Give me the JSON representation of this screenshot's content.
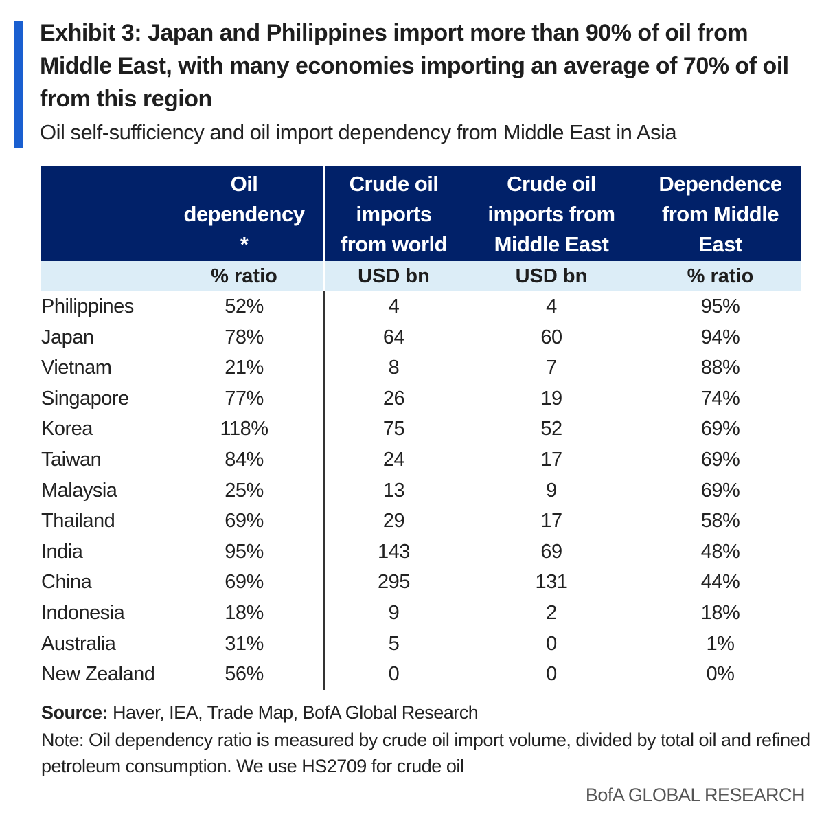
{
  "header": {
    "title": "Exhibit 3: Japan and Philippines import more than 90% of oil from Middle East, with many economies importing an average of 70% of oil from this region",
    "subtitle": "Oil self-sufficiency and oil import dependency from Middle East in Asia",
    "accent_color": "#1a5fd0"
  },
  "chart_data": {
    "type": "table",
    "title": "Exhibit 3: Japan and Philippines import more than 90% of oil from Middle East, with many economies importing an average of 70% of oil from this region",
    "subtitle": "Oil self-sufficiency and oil import dependency from Middle East in Asia",
    "header_color": "#012169",
    "unit_row_color": "#dcedf7",
    "columns": [
      {
        "label": "",
        "unit": ""
      },
      {
        "label": "Oil dependency *",
        "label_lines": [
          "Oil",
          "dependency",
          "*"
        ],
        "unit": "% ratio"
      },
      {
        "label": "Crude oil imports from world",
        "label_lines": [
          "Crude oil",
          "imports",
          "from world"
        ],
        "unit": "USD bn"
      },
      {
        "label": "Crude oil imports from Middle East",
        "label_lines": [
          "Crude oil",
          "imports from",
          "Middle East"
        ],
        "unit": "USD bn"
      },
      {
        "label": "Dependence from Middle East",
        "label_lines": [
          "Dependence",
          "from Middle",
          "East"
        ],
        "unit": "% ratio"
      }
    ],
    "rows": [
      {
        "country": "Philippines",
        "oil_dependency": "52%",
        "imports_world": "4",
        "imports_me": "4",
        "dependence_me": "95%"
      },
      {
        "country": "Japan",
        "oil_dependency": "78%",
        "imports_world": "64",
        "imports_me": "60",
        "dependence_me": "94%"
      },
      {
        "country": "Vietnam",
        "oil_dependency": "21%",
        "imports_world": "8",
        "imports_me": "7",
        "dependence_me": "88%"
      },
      {
        "country": "Singapore",
        "oil_dependency": "77%",
        "imports_world": "26",
        "imports_me": "19",
        "dependence_me": "74%"
      },
      {
        "country": "Korea",
        "oil_dependency": "118%",
        "imports_world": "75",
        "imports_me": "52",
        "dependence_me": "69%"
      },
      {
        "country": "Taiwan",
        "oil_dependency": "84%",
        "imports_world": "24",
        "imports_me": "17",
        "dependence_me": "69%"
      },
      {
        "country": "Malaysia",
        "oil_dependency": "25%",
        "imports_world": "13",
        "imports_me": "9",
        "dependence_me": "69%"
      },
      {
        "country": "Thailand",
        "oil_dependency": "69%",
        "imports_world": "29",
        "imports_me": "17",
        "dependence_me": "58%"
      },
      {
        "country": "India",
        "oil_dependency": "95%",
        "imports_world": "143",
        "imports_me": "69",
        "dependence_me": "48%"
      },
      {
        "country": "China",
        "oil_dependency": "69%",
        "imports_world": "295",
        "imports_me": "131",
        "dependence_me": "44%"
      },
      {
        "country": "Indonesia",
        "oil_dependency": "18%",
        "imports_world": "9",
        "imports_me": "2",
        "dependence_me": "18%"
      },
      {
        "country": "Australia",
        "oil_dependency": "31%",
        "imports_world": "5",
        "imports_me": "0",
        "dependence_me": "1%"
      },
      {
        "country": "New Zealand",
        "oil_dependency": "56%",
        "imports_world": "0",
        "imports_me": "0",
        "dependence_me": "0%"
      }
    ]
  },
  "footer": {
    "source_label": "Source:",
    "source_text": " Haver, IEA, Trade Map, BofA Global Research",
    "note": "Note: Oil dependency ratio is measured by crude oil import volume, divided by total oil and refined petroleum consumption. We use HS2709 for crude oil",
    "brand": "BofA GLOBAL RESEARCH"
  }
}
